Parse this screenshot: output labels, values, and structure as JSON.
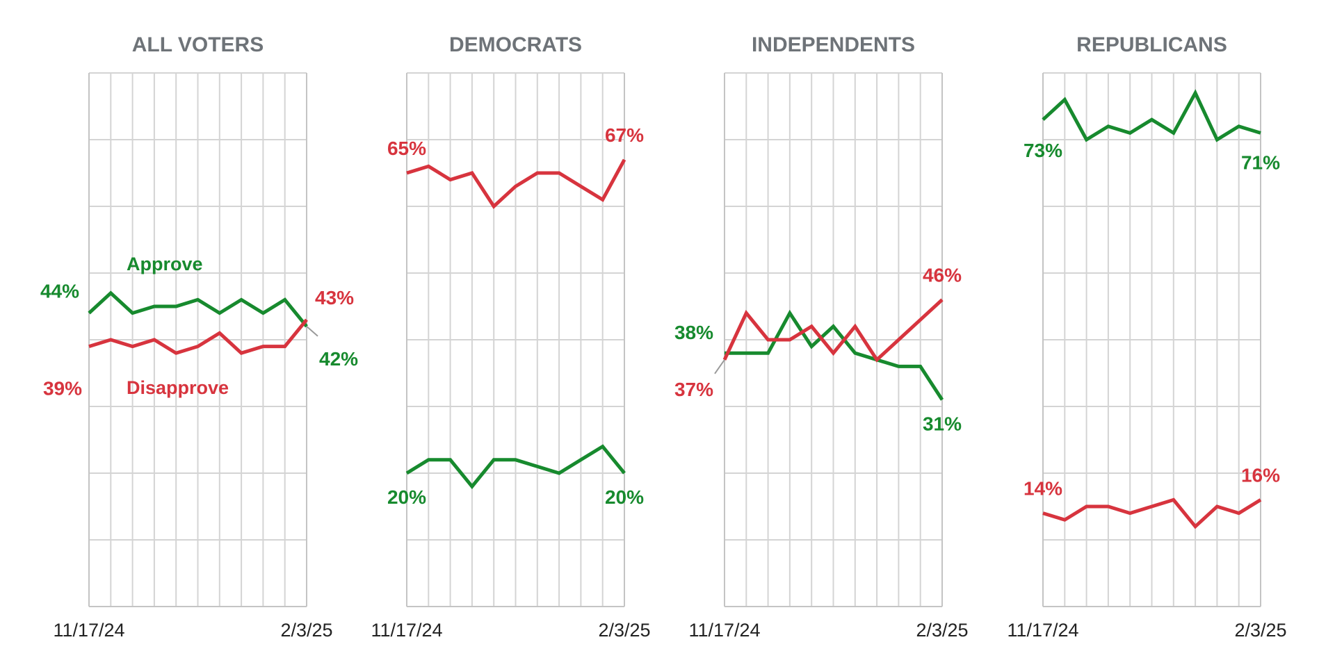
{
  "colors": {
    "approve": "#178a2e",
    "disapprove": "#d7343e",
    "title": "#6e7378",
    "grid": "#d4d4d4"
  },
  "chart_data": [
    {
      "type": "line",
      "title": "ALL VOTERS",
      "x_ticks": [
        "11/17/24",
        "2/3/25"
      ],
      "ylim": [
        0,
        80
      ],
      "grid": true,
      "series": [
        {
          "name": "Approve",
          "key": "approve",
          "values": [
            44,
            47,
            44,
            45,
            45,
            46,
            44,
            46,
            44,
            46,
            42
          ]
        },
        {
          "name": "Disapprove",
          "key": "disapprove",
          "values": [
            39,
            40,
            39,
            40,
            38,
            39,
            41,
            38,
            39,
            39,
            43
          ]
        }
      ],
      "data_labels": [
        {
          "series": 0,
          "point": 0,
          "text": "44%"
        },
        {
          "series": 0,
          "point": 10,
          "text": "42%"
        },
        {
          "series": 1,
          "point": 0,
          "text": "39%"
        },
        {
          "series": 1,
          "point": 10,
          "text": "43%"
        }
      ]
    },
    {
      "type": "line",
      "title": "DEMOCRATS",
      "x_ticks": [
        "11/17/24",
        "2/3/25"
      ],
      "ylim": [
        0,
        80
      ],
      "grid": true,
      "series": [
        {
          "key": "approve",
          "values": [
            20,
            22,
            22,
            18,
            22,
            22,
            21,
            20,
            22,
            24,
            20
          ]
        },
        {
          "key": "disapprove",
          "values": [
            65,
            66,
            64,
            65,
            60,
            63,
            65,
            65,
            63,
            61,
            67
          ]
        }
      ],
      "data_labels": [
        {
          "series": 0,
          "point": 0,
          "text": "20%"
        },
        {
          "series": 0,
          "point": 10,
          "text": "20%"
        },
        {
          "series": 1,
          "point": 0,
          "text": "65%"
        },
        {
          "series": 1,
          "point": 10,
          "text": "67%"
        }
      ]
    },
    {
      "type": "line",
      "title": "INDEPENDENTS",
      "x_ticks": [
        "11/17/24",
        "2/3/25"
      ],
      "ylim": [
        0,
        80
      ],
      "grid": true,
      "series": [
        {
          "key": "approve",
          "values": [
            38,
            38,
            38,
            44,
            39,
            42,
            38,
            37,
            36,
            36,
            31
          ]
        },
        {
          "key": "disapprove",
          "values": [
            37,
            44,
            40,
            40,
            42,
            38,
            42,
            37,
            40,
            43,
            46
          ]
        }
      ],
      "data_labels": [
        {
          "series": 0,
          "point": 0,
          "text": "38%"
        },
        {
          "series": 0,
          "point": 10,
          "text": "31%"
        },
        {
          "series": 1,
          "point": 0,
          "text": "37%"
        },
        {
          "series": 1,
          "point": 10,
          "text": "46%"
        }
      ]
    },
    {
      "type": "line",
      "title": "REPUBLICANS",
      "x_ticks": [
        "11/17/24",
        "2/3/25"
      ],
      "ylim": [
        0,
        80
      ],
      "grid": true,
      "series": [
        {
          "key": "approve",
          "values": [
            73,
            76,
            70,
            72,
            71,
            73,
            71,
            77,
            70,
            72,
            71
          ]
        },
        {
          "key": "disapprove",
          "values": [
            14,
            13,
            15,
            15,
            14,
            15,
            16,
            12,
            15,
            14,
            16
          ]
        }
      ],
      "data_labels": [
        {
          "series": 0,
          "point": 0,
          "text": "73%"
        },
        {
          "series": 0,
          "point": 10,
          "text": "71%"
        },
        {
          "series": 1,
          "point": 0,
          "text": "14%"
        },
        {
          "series": 1,
          "point": 10,
          "text": "16%"
        }
      ]
    }
  ]
}
